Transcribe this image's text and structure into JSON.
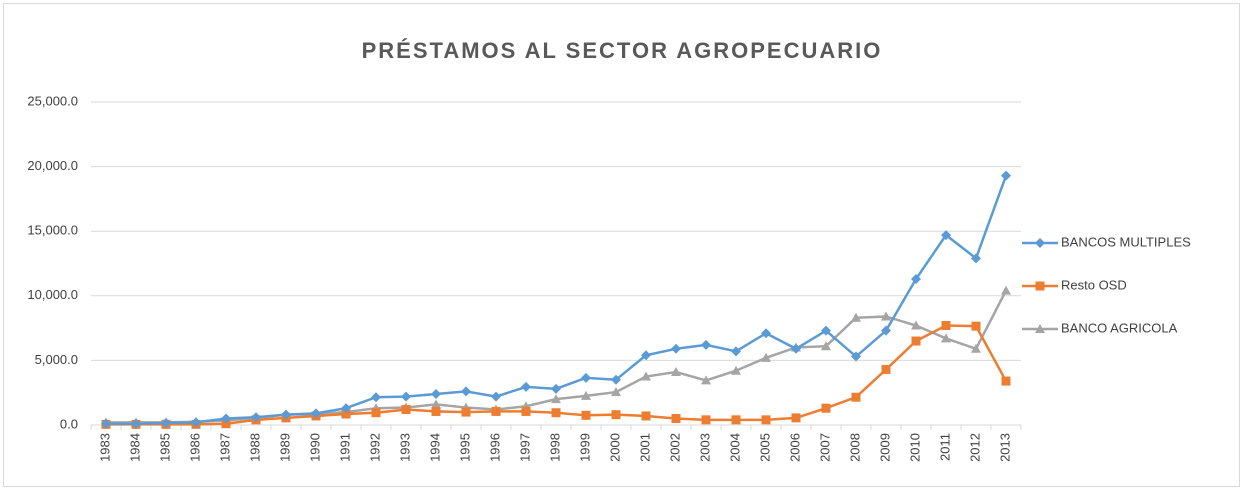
{
  "chart_data": {
    "type": "line",
    "title": "PRÉSTAMOS AL SECTOR AGROPECUARIO",
    "categories": [
      "1983",
      "1984",
      "1985",
      "1986",
      "1987",
      "1988",
      "1989",
      "1990",
      "1991",
      "1992",
      "1993",
      "1994",
      "1995",
      "1996",
      "1997",
      "1998",
      "1999",
      "2000",
      "2001",
      "2002",
      "2003",
      "2004",
      "2005",
      "2006",
      "2007",
      "2008",
      "2009",
      "2010",
      "2011",
      "2012",
      "2013"
    ],
    "series": [
      {
        "name": "BANCOS MULTIPLES",
        "color": "#5b9bd5",
        "marker": "diamond",
        "values": [
          100,
          100,
          150,
          200,
          500,
          600,
          800,
          900,
          1300,
          2150,
          2200,
          2400,
          2600,
          2200,
          2950,
          2800,
          3650,
          3500,
          5400,
          5900,
          6200,
          5700,
          7100,
          5900,
          7300,
          5300,
          7300,
          11300,
          14700,
          12900,
          19300
        ]
      },
      {
        "name": "Resto OSD",
        "color": "#ed7d31",
        "marker": "square",
        "values": [
          50,
          50,
          50,
          50,
          100,
          400,
          550,
          700,
          850,
          950,
          1200,
          1050,
          1000,
          1050,
          1050,
          950,
          750,
          800,
          700,
          500,
          400,
          400,
          400,
          550,
          1300,
          2150,
          4300,
          6500,
          7700,
          7650,
          3400
        ]
      },
      {
        "name": "BANCO AGRICOLA",
        "color": "#a5a5a5",
        "marker": "triangle",
        "values": [
          200,
          200,
          200,
          250,
          350,
          550,
          800,
          850,
          1000,
          1300,
          1350,
          1600,
          1350,
          1200,
          1450,
          2000,
          2250,
          2550,
          3750,
          4100,
          3450,
          4200,
          5200,
          6000,
          6100,
          8300,
          8400,
          7700,
          6700,
          5900,
          10400
        ]
      }
    ],
    "ylim": [
      0,
      25000
    ],
    "yticks": [
      {
        "value": 0,
        "label": "0.0"
      },
      {
        "value": 5000,
        "label": "5,000.0"
      },
      {
        "value": 10000,
        "label": "10,000.0"
      },
      {
        "value": 15000,
        "label": "15,000.0"
      },
      {
        "value": 20000,
        "label": "20,000.0"
      },
      {
        "value": 25000,
        "label": "25,000.0"
      }
    ],
    "grid": true,
    "legend": "right"
  }
}
